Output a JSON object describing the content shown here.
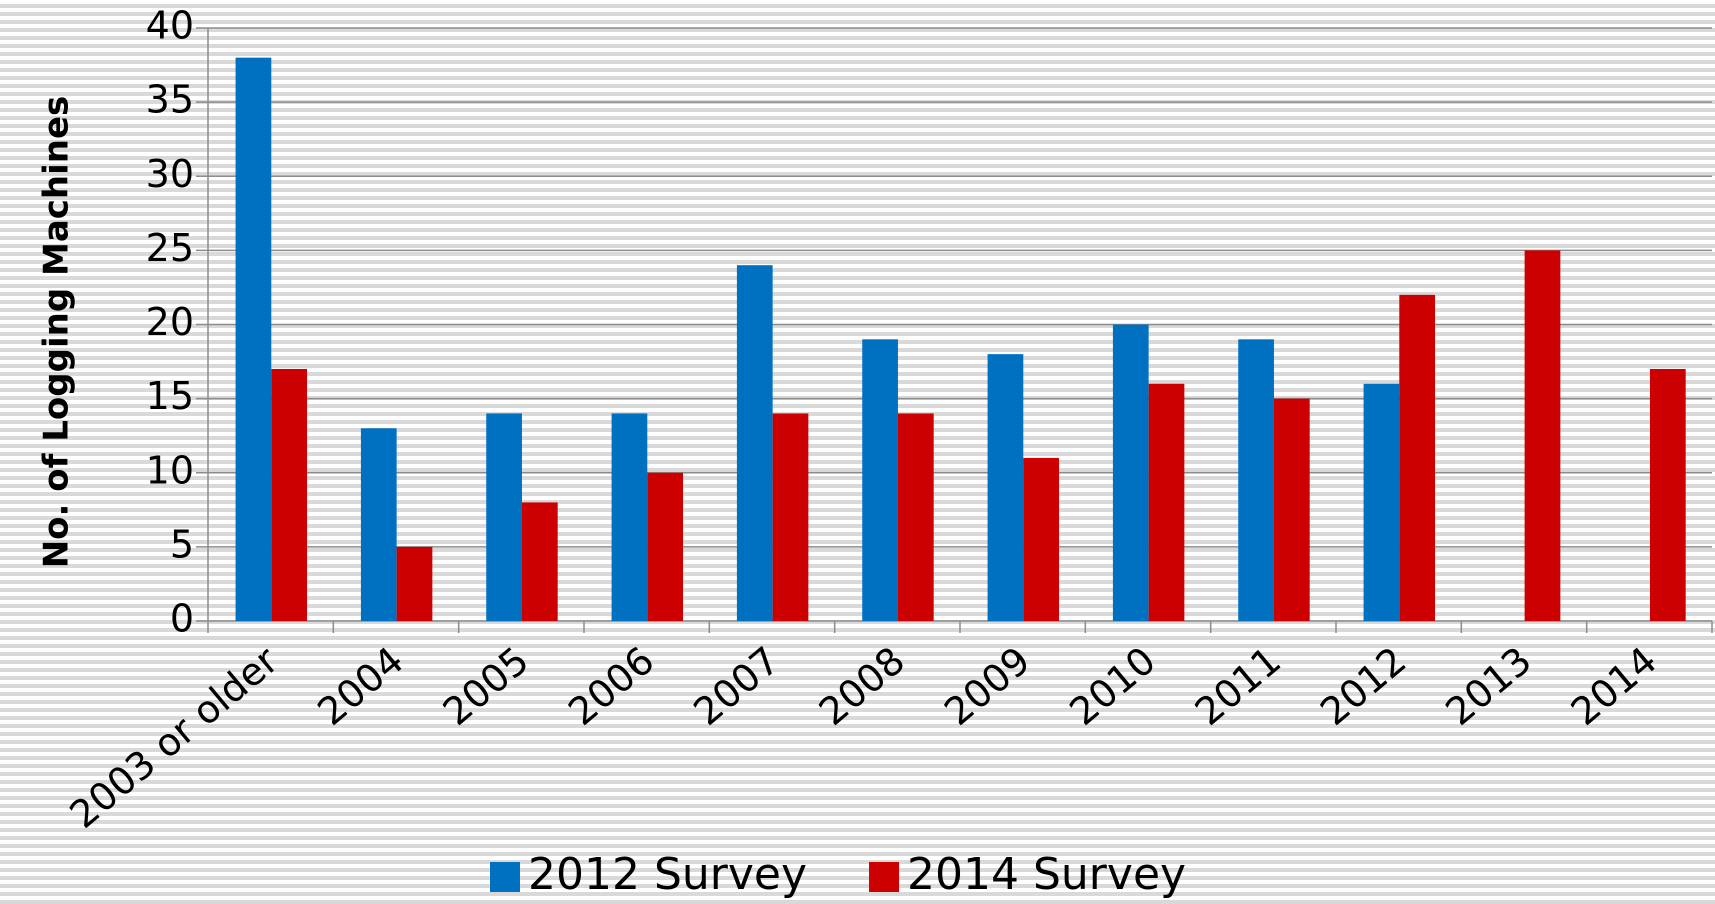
{
  "chart_data": {
    "type": "bar",
    "y_label": "No. of Logging Machines",
    "categories": [
      "2003 or older",
      "2004",
      "2005",
      "2006",
      "2007",
      "2008",
      "2009",
      "2010",
      "2011",
      "2012",
      "2013",
      "2014"
    ],
    "series": [
      {
        "name": "2012 Survey",
        "color": "#0070c0",
        "values": [
          38,
          13,
          14,
          14,
          24,
          19,
          18,
          20,
          19,
          16,
          null,
          null
        ]
      },
      {
        "name": "2014 Survey",
        "color": "#cc0000",
        "values": [
          17,
          5,
          8,
          10,
          14,
          14,
          11,
          16,
          15,
          22,
          25,
          17
        ]
      }
    ],
    "ylim": [
      0,
      40
    ],
    "yticks": [
      0,
      5,
      10,
      15,
      20,
      25,
      30,
      35,
      40
    ],
    "grid": true,
    "legend": "bottom"
  }
}
